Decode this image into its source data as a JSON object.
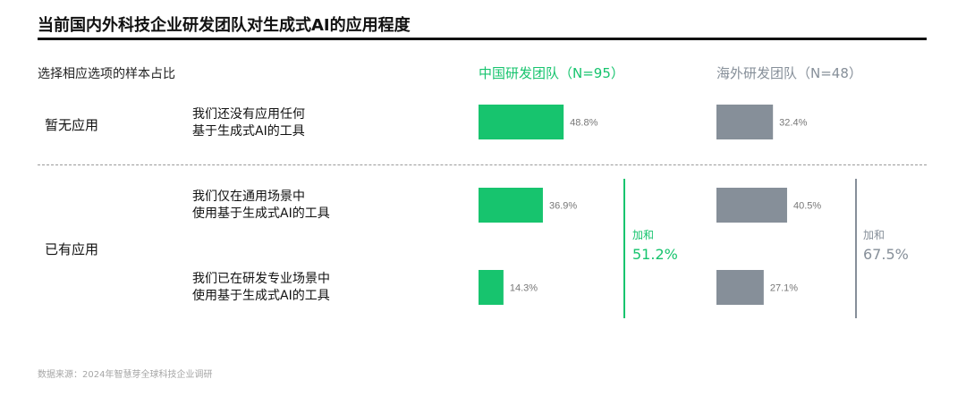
{
  "title": "当前国内外科技企业研发团队对生成式AI的应用程度",
  "subheading": "选择相应选项的样本占比",
  "columns": {
    "china": "中国研发团队（N=95）",
    "overseas": "海外研发团队（N=48）"
  },
  "groups": {
    "none": "暂无应用",
    "applied": "已有应用"
  },
  "rows": [
    {
      "line1": "我们还没有应用任何",
      "line2": "基于生成式AI的工具"
    },
    {
      "line1": "我们仅在通用场景中",
      "line2": "使用基于生成式AI的工具"
    },
    {
      "line1": "我们已在研发专业场景中",
      "line2": "使用基于生成式AI的工具"
    }
  ],
  "sums": {
    "label": "加和",
    "china": "51.2%",
    "overseas": "67.5%"
  },
  "source": "数据来源：2024年智慧芽全球科技企业调研",
  "chart_data": {
    "type": "bar",
    "orientation": "horizontal",
    "categories": [
      "我们还没有应用任何基于生成式AI的工具",
      "我们仅在通用场景中使用基于生成式AI的工具",
      "我们已在研发专业场景中使用基于生成式AI的工具"
    ],
    "series": [
      {
        "name": "中国研发团队（N=95）",
        "values": [
          48.8,
          36.9,
          14.3
        ],
        "labels": [
          "48.8%",
          "36.9%",
          "14.3%"
        ]
      },
      {
        "name": "海外研发团队（N=48）",
        "values": [
          32.4,
          40.5,
          27.1
        ],
        "labels": [
          "32.4%",
          "40.5%",
          "27.1%"
        ]
      }
    ],
    "colors": {
      "china": "#17c46e",
      "overseas": "#868f99"
    },
    "xlim": [
      0,
      100
    ],
    "grid": false
  }
}
